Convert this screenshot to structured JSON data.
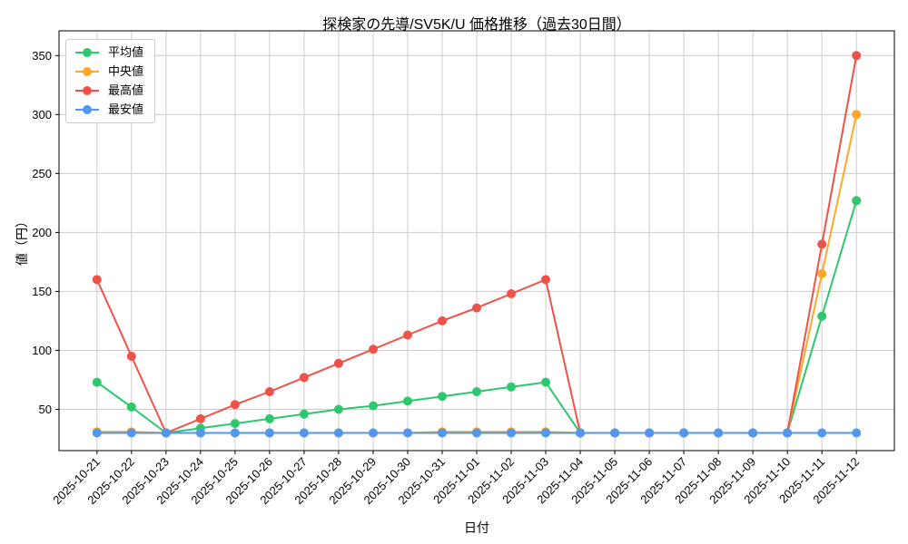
{
  "title": "探検家の先導/SV5K/U 価格推移（過去30日間）",
  "xlabel": "日付",
  "ylabel": "値（円）",
  "legend": [
    {
      "id": "mean",
      "label": "平均値",
      "color": "#2dc76d"
    },
    {
      "id": "median",
      "label": "中央値",
      "color": "#ffa726"
    },
    {
      "id": "max",
      "label": "最高値",
      "color": "#f05149"
    },
    {
      "id": "min",
      "label": "最安値",
      "color": "#4e97f3"
    }
  ],
  "chart_data": {
    "type": "line",
    "title": "探検家の先導/SV5K/U 価格推移（過去30日間）",
    "xlabel": "日付",
    "ylabel": "値（円）",
    "x": [
      "2025-10-21",
      "2025-10-22",
      "2025-10-23",
      "2025-10-24",
      "2025-10-25",
      "2025-10-26",
      "2025-10-27",
      "2025-10-28",
      "2025-10-29",
      "2025-10-30",
      "2025-10-31",
      "2025-11-01",
      "2025-11-02",
      "2025-11-03",
      "2025-11-04",
      "2025-11-05",
      "2025-11-06",
      "2025-11-07",
      "2025-11-08",
      "2025-11-09",
      "2025-11-10",
      "2025-11-11",
      "2025-11-12"
    ],
    "series": [
      {
        "id": "mean",
        "name": "平均値",
        "color": "#2dc76d",
        "values": [
          73,
          52,
          30,
          34,
          38,
          42,
          46,
          50,
          53,
          57,
          61,
          65,
          69,
          73,
          30,
          30,
          30,
          30,
          30,
          30,
          30,
          129,
          227
        ]
      },
      {
        "id": "median",
        "name": "中央値",
        "color": "#ffa726",
        "values": [
          31,
          31,
          30,
          30,
          30,
          30,
          30,
          30,
          30,
          30,
          31,
          31,
          31,
          31,
          30,
          30,
          30,
          30,
          30,
          30,
          30,
          165,
          300
        ]
      },
      {
        "id": "max",
        "name": "最高値",
        "color": "#f05149",
        "values": [
          160,
          95,
          30,
          42,
          54,
          65,
          77,
          89,
          101,
          113,
          125,
          136,
          148,
          160,
          30,
          30,
          30,
          30,
          30,
          30,
          30,
          190,
          350
        ]
      },
      {
        "id": "min",
        "name": "最安値",
        "color": "#4e97f3",
        "values": [
          30,
          30,
          30,
          30,
          30,
          30,
          30,
          30,
          30,
          30,
          30,
          30,
          30,
          30,
          30,
          30,
          30,
          30,
          30,
          30,
          30,
          30,
          30
        ]
      }
    ],
    "yticks": [
      50,
      100,
      150,
      200,
      250,
      300,
      350
    ],
    "ylim": [
      15,
      371
    ],
    "grid": true,
    "grid_color": "#cccccc",
    "spine_color": "#000000",
    "legend_position": "upper left",
    "x_tick_rotation": 45
  }
}
